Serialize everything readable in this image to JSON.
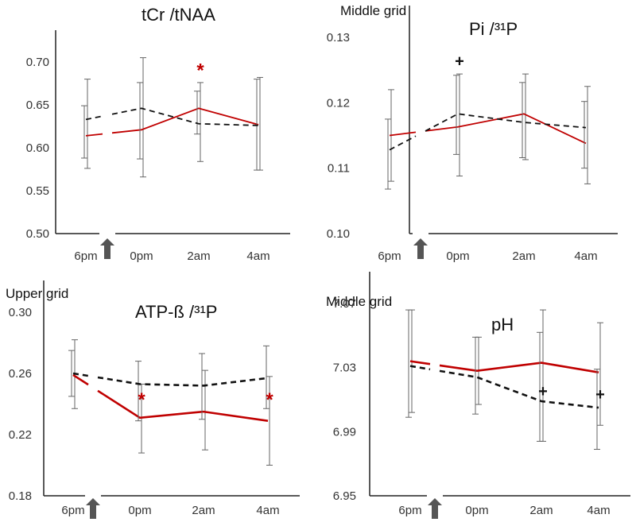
{
  "chart_data": [
    {
      "type": "line",
      "title": "tCr /tNAA",
      "grid_label": "",
      "categories": [
        "6pm",
        "0pm",
        "2am",
        "4am"
      ],
      "ylim": [
        0.5,
        0.7
      ],
      "yticks": [
        "0.50",
        "0.55",
        "0.60",
        "0.65",
        "0.70"
      ],
      "series": [
        {
          "style": "solid",
          "color": "#c00000",
          "values": [
            0.614,
            0.621,
            0.646,
            0.627
          ],
          "err_lo": [
            0.576,
            0.566,
            0.584,
            0.574
          ],
          "err_hi": [
            0.68,
            0.705,
            0.676,
            0.682
          ]
        },
        {
          "style": "dashed",
          "color": "#111111",
          "values": [
            0.633,
            0.646,
            0.628,
            0.626
          ],
          "err_lo": [
            0.588,
            0.587,
            0.616,
            0.574
          ],
          "err_hi": [
            0.649,
            0.676,
            0.666,
            0.68
          ]
        }
      ],
      "annotations": [
        {
          "text": "*",
          "x": "2am",
          "y": 0.692,
          "color": "#c00000"
        }
      ]
    },
    {
      "type": "line",
      "title": "Pi /³¹P",
      "grid_label": "Middle grid",
      "categories": [
        "6pm",
        "0pm",
        "2am",
        "4am"
      ],
      "ylim": [
        0.1,
        0.13
      ],
      "yticks": [
        "0.10",
        "0.11",
        "0.12",
        "0.13"
      ],
      "series": [
        {
          "style": "solid",
          "color": "#c00000",
          "values": [
            0.115,
            0.1163,
            0.1183,
            0.1138
          ],
          "err_lo": [
            0.108,
            0.1088,
            0.1113,
            0.1076
          ],
          "err_hi": [
            0.122,
            0.1244,
            0.1244,
            0.1225
          ]
        },
        {
          "style": "dashed",
          "color": "#111111",
          "values": [
            0.1128,
            0.1183,
            0.117,
            0.1162
          ],
          "err_lo": [
            0.1068,
            0.1121,
            0.1116,
            0.11
          ],
          "err_hi": [
            0.1175,
            0.1242,
            0.1231,
            0.1202
          ]
        }
      ],
      "annotations": [
        {
          "text": "+",
          "x": "0pm",
          "y": 0.1268,
          "color": "#111111"
        }
      ]
    },
    {
      "type": "line",
      "title": "ATP-ß /³¹P",
      "grid_label": "Upper grid",
      "categories": [
        "6pm",
        "0pm",
        "2am",
        "4am"
      ],
      "ylim": [
        0.18,
        0.3
      ],
      "yticks": [
        "0.18",
        "0.22",
        "0.26",
        "0.30"
      ],
      "series": [
        {
          "style": "solid",
          "color": "#c00000",
          "values": [
            0.259,
            0.231,
            0.235,
            0.229
          ],
          "err_lo": [
            0.237,
            0.208,
            0.21,
            0.2
          ],
          "err_hi": [
            0.282,
            0.253,
            0.262,
            0.258
          ]
        },
        {
          "style": "dashed",
          "color": "#111111",
          "values": [
            0.26,
            0.253,
            0.252,
            0.257
          ],
          "err_lo": [
            0.245,
            0.229,
            0.23,
            0.237
          ],
          "err_hi": [
            0.275,
            0.268,
            0.273,
            0.278
          ]
        }
      ],
      "annotations": [
        {
          "text": "*",
          "x": "0pm",
          "y": 0.244,
          "color": "#c00000"
        },
        {
          "text": "*",
          "x": "4am",
          "y": 0.244,
          "color": "#c00000"
        }
      ]
    },
    {
      "type": "line",
      "title": "pH",
      "grid_label": "Middle grid",
      "categories": [
        "6pm",
        "0pm",
        "2am",
        "4am"
      ],
      "ylim": [
        6.95,
        7.07
      ],
      "yticks": [
        "6.95",
        "6.99",
        "7.03",
        "7.07"
      ],
      "series": [
        {
          "style": "solid",
          "color": "#c00000",
          "values": [
            7.034,
            7.028,
            7.033,
            7.027
          ],
          "err_lo": [
            7.002,
            7.007,
            6.984,
            6.994
          ],
          "err_hi": [
            7.066,
            7.049,
            7.066,
            7.058
          ]
        },
        {
          "style": "dashed",
          "color": "#111111",
          "values": [
            7.031,
            7.024,
            7.009,
            7.005
          ],
          "err_lo": [
            6.999,
            7.001,
            6.984,
            6.979
          ],
          "err_hi": [
            7.066,
            7.049,
            7.052,
            7.029
          ]
        }
      ],
      "annotations": [
        {
          "text": "+",
          "x": "2am",
          "y": 7.017,
          "color": "#111111"
        },
        {
          "text": "+",
          "x": "4am",
          "y": 7.015,
          "color": "#111111"
        }
      ]
    }
  ]
}
